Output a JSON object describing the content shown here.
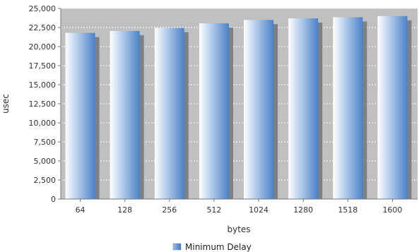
{
  "chart_data": {
    "type": "bar",
    "categories": [
      "64",
      "128",
      "256",
      "512",
      "1024",
      "1280",
      "1518",
      "1600"
    ],
    "series": [
      {
        "name": "Minimum Delay",
        "values": [
          21800,
          22050,
          22450,
          23050,
          23500,
          23700,
          23850,
          24000
        ]
      }
    ],
    "title": "",
    "xlabel": "bytes",
    "ylabel": "usec",
    "ylim": [
      0,
      25000
    ],
    "yticks": [
      0,
      2500,
      5000,
      7500,
      10000,
      12500,
      15000,
      17500,
      20000,
      22500,
      25000
    ],
    "ytick_labels": [
      "0",
      "2,500",
      "5,000",
      "7,500",
      "10,000",
      "12,500",
      "15,000",
      "17,500",
      "20,000",
      "22,500",
      "25,000"
    ],
    "grid": true,
    "legend_position": "bottom",
    "colors": {
      "plot_background": "#c0c0c0",
      "bar_dark": "#4a82c8",
      "bar_light": "#ffffff",
      "shadow": "#808080",
      "grid": "#ffffff",
      "axis": "#777777",
      "legend_swatch": "#5b8fd1"
    }
  }
}
